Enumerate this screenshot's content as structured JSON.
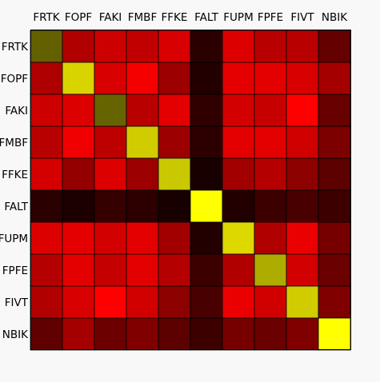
{
  "chart_data": {
    "type": "heatmap",
    "title": "",
    "xlabel": "",
    "ylabel": "",
    "x_labels": [
      "FRTK",
      "FOPF",
      "FAKI",
      "FMBF",
      "FFKE",
      "FALT",
      "FUPM",
      "FPFE",
      "FIVT",
      "NBIK"
    ],
    "y_labels": [
      "FRTK",
      "FOPF",
      "FAKI",
      "FMBF",
      "FFKE",
      "FALT",
      "FUPM",
      "FPFE",
      "FIVT",
      "NBIK"
    ],
    "x_label_position": "top",
    "colormap": "hot",
    "cells": [
      [
        "#636000",
        "#b00000",
        "#cc0000",
        "#c00000",
        "#d80000",
        "#2a0000",
        "#dc0000",
        "#b80000",
        "#b80000",
        "#640000"
      ],
      [
        "#ae0000",
        "#d8d400",
        "#d80000",
        "#f40000",
        "#9c0000",
        "#220000",
        "#e40000",
        "#e20000",
        "#d80000",
        "#a40000"
      ],
      [
        "#cc0000",
        "#dc0000",
        "#656400",
        "#b80000",
        "#e20000",
        "#300000",
        "#d20000",
        "#c60000",
        "#ff0000",
        "#680000"
      ],
      [
        "#b80000",
        "#f00000",
        "#bc0000",
        "#d0cc00",
        "#9c0000",
        "#2c0000",
        "#e20000",
        "#e20000",
        "#ce0000",
        "#7c0000"
      ],
      [
        "#d40000",
        "#940000",
        "#dc0000",
        "#9c0000",
        "#cac800",
        "#180000",
        "#a20000",
        "#b40000",
        "#8c0000",
        "#5c0000"
      ],
      [
        "#2a0000",
        "#1c0000",
        "#340000",
        "#2c0000",
        "#180000",
        "#ffff00",
        "#220000",
        "#3c0000",
        "#480000",
        "#3c0000"
      ],
      [
        "#dc0000",
        "#e40000",
        "#d20000",
        "#e20000",
        "#a20000",
        "#220000",
        "#dcd800",
        "#b00000",
        "#ea0000",
        "#760000"
      ],
      [
        "#b40000",
        "#e20000",
        "#c40000",
        "#e20000",
        "#b40000",
        "#3c0000",
        "#b00000",
        "#adac00",
        "#d20000",
        "#6a0000"
      ],
      [
        "#b00000",
        "#d80000",
        "#ff0000",
        "#d00000",
        "#8c0000",
        "#480000",
        "#ea0000",
        "#d00000",
        "#d0cc00",
        "#800000"
      ],
      [
        "#600000",
        "#a40000",
        "#6c0000",
        "#800000",
        "#5c0000",
        "#3c0000",
        "#760000",
        "#6a0000",
        "#800000",
        "#ffff00"
      ]
    ]
  }
}
